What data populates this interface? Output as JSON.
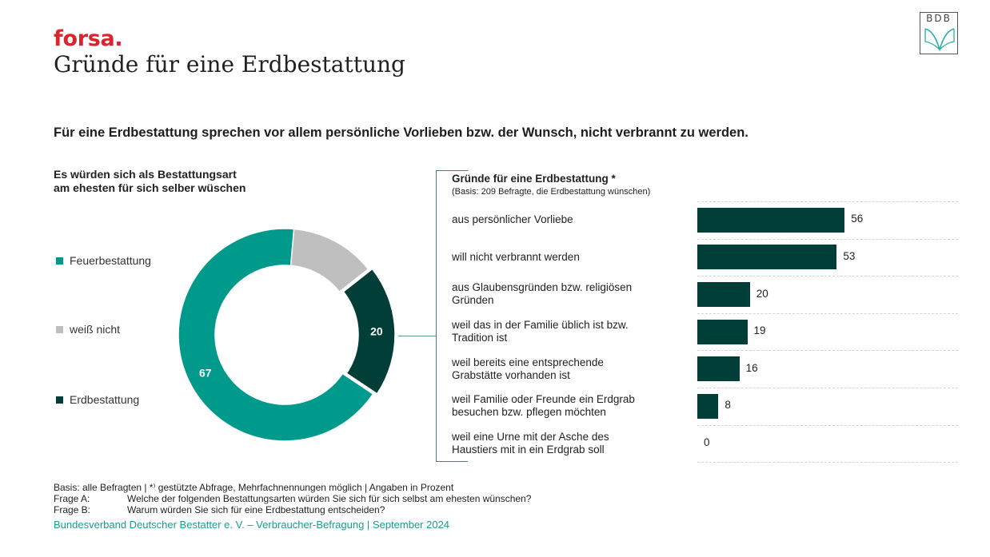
{
  "header": {
    "brand": "forsa.",
    "title": "Gründe für eine Erdbestattung",
    "logo_text": "BDB"
  },
  "headline": "Für eine Erdbestattung sprechen vor allem persönliche Vorlieben bzw. der Wunsch, nicht verbrannt zu werden.",
  "colors": {
    "brand_red": "#d9262c",
    "teal": "#009a8c",
    "gray": "#bfbfbf",
    "dark_green": "#023e38",
    "source_teal": "#1a9c92"
  },
  "chart_data": [
    {
      "type": "pie",
      "variant": "donut",
      "title": "Es würden sich als Bestattungsart am ehesten für sich selber wüschen",
      "title_lines": [
        "Es würden sich als Bestattungsart",
        "am ehesten für sich selber wüschen"
      ],
      "slices": [
        {
          "name": "weiß nicht",
          "value": 13,
          "color": "#bfbfbf",
          "label": ""
        },
        {
          "name": "Erdbestattung",
          "value": 20,
          "color": "#023e38",
          "label": "20",
          "exploded": true
        },
        {
          "name": "Feuerbestattung",
          "value": 67,
          "color": "#009a8c",
          "label": "67"
        }
      ],
      "legend": [
        {
          "name": "Feuerbestattung",
          "color": "#009a8c"
        },
        {
          "name": "weiß nicht",
          "color": "#bfbfbf"
        },
        {
          "name": "Erdbestattung",
          "color": "#023e38"
        }
      ],
      "legend_position": "left"
    },
    {
      "type": "bar",
      "orientation": "horizontal",
      "title": "Gründe für eine Erdbestattung *",
      "subtitle": "(Basis: 209 Befragte, die Erdbestattung wünschen)",
      "categories": [
        [
          "aus persönlicher Vorliebe"
        ],
        [
          "will nicht verbrannt werden"
        ],
        [
          "aus Glaubensgründen bzw. religiösen",
          "Gründen"
        ],
        [
          "weil das in der Familie üblich ist bzw.",
          "Tradition ist"
        ],
        [
          "weil bereits eine entsprechende",
          "Grabstätte vorhanden ist"
        ],
        [
          "weil Familie oder Freunde ein Erdgrab",
          "besuchen bzw. pflegen möchten"
        ],
        [
          "weil eine Urne mit der Asche des",
          "Haustiers mit in ein Erdgrab soll"
        ]
      ],
      "values": [
        56,
        53,
        20,
        19,
        16,
        8,
        0
      ],
      "value_labels": [
        "56",
        "53",
        "20",
        "19",
        "16",
        "8",
        "0"
      ],
      "color": "#023e38",
      "xlim": [
        0,
        100
      ],
      "grid": "dashed row separators"
    }
  ],
  "footer": {
    "basis": "Basis: alle Befragten | *⁾ gestützte Abfrage, Mehrfachnennungen möglich | Angaben in Prozent",
    "questions": [
      {
        "label": "Frage A:",
        "text": "Welche der folgenden Bestattungsarten würden Sie sich für sich selbst am ehesten wünschen?"
      },
      {
        "label": "Frage B:",
        "text": "Warum würden Sie sich für eine Erdbestattung entscheiden?"
      }
    ],
    "source": "Bundesverband Deutscher Bestatter e. V. – Verbraucher-Befragung | September 2024"
  }
}
